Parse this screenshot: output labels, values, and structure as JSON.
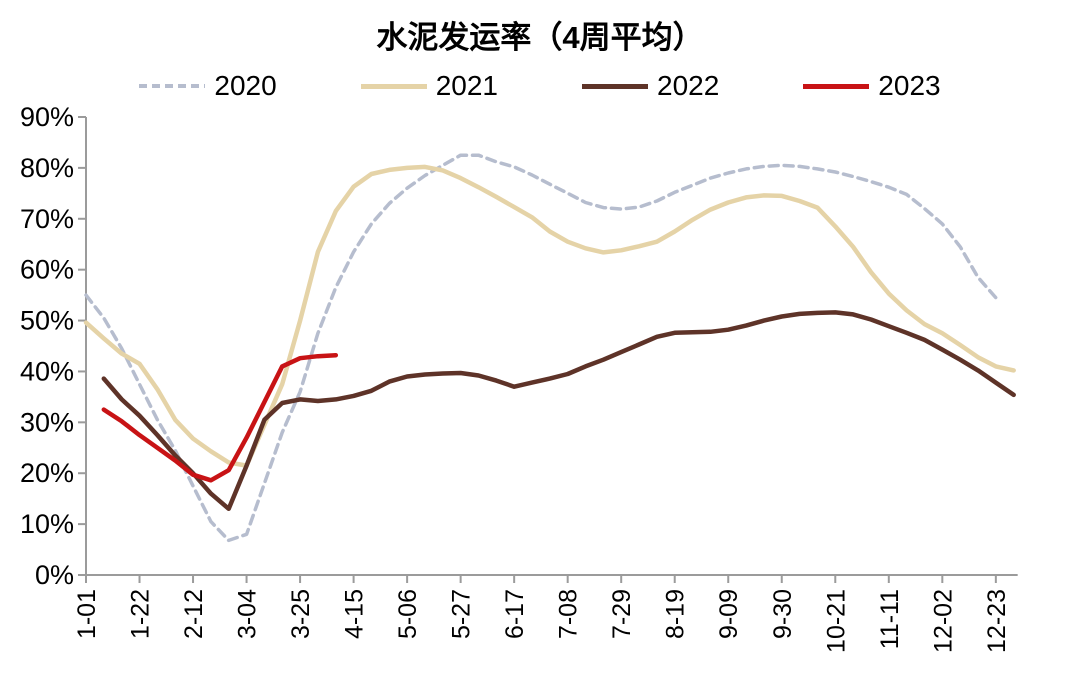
{
  "title": "水泥发运率（4周平均）",
  "chart_data": {
    "type": "line",
    "title": "水泥发运率（4周平均）",
    "grid": false,
    "legend_position": "top",
    "background": "#ffffff",
    "axis_color": "#9b9b9b",
    "label_color": "#000000",
    "y_axis": {
      "min": 0,
      "max": 90,
      "step": 10,
      "labels": [
        "0%",
        "10%",
        "20%",
        "30%",
        "40%",
        "50%",
        "60%",
        "70%",
        "80%",
        "90%"
      ]
    },
    "x_axis": {
      "unit": "week",
      "total_weeks": 53,
      "tick_every_weeks": 3,
      "tick_labels": [
        "1-01",
        "1-22",
        "2-12",
        "3-04",
        "3-25",
        "4-15",
        "5-06",
        "5-27",
        "6-17",
        "7-08",
        "7-29",
        "8-19",
        "9-09",
        "9-30",
        "10-21",
        "11-11",
        "12-02",
        "12-23"
      ]
    },
    "series": [
      {
        "name": "2020",
        "color": "#b6bdce",
        "style": "dashed",
        "start_week": 1,
        "values": [
          55,
          50.5,
          44.5,
          37.5,
          30.5,
          24.5,
          17.5,
          10.5,
          6.8,
          8,
          18,
          28,
          36,
          47.5,
          56.5,
          63.5,
          69,
          73,
          76,
          78.5,
          80.5,
          82.5,
          82.5,
          81.2,
          80.2,
          78.6,
          76.8,
          75,
          73.2,
          72.2,
          71.9,
          72.3,
          73.5,
          75.2,
          76.6,
          78,
          79,
          79.8,
          80.3,
          80.5,
          80.3,
          79.8,
          79.2,
          78.3,
          77.3,
          76.2,
          74.8,
          72,
          69,
          64.5,
          58.5,
          54.5
        ]
      },
      {
        "name": "2021",
        "color": "#e5d3a7",
        "style": "solid",
        "start_week": 1,
        "values": [
          49.6,
          46.5,
          43.5,
          41.5,
          36.5,
          30.5,
          26.8,
          24.3,
          22.1,
          21.5,
          29.5,
          37.5,
          50,
          63.5,
          71.5,
          76.3,
          78.8,
          79.6,
          80,
          80.2,
          79.5,
          78,
          76.2,
          74.3,
          72.3,
          70.3,
          67.5,
          65.5,
          64.2,
          63.4,
          63.8,
          64.6,
          65.5,
          67.5,
          69.8,
          71.8,
          73.2,
          74.2,
          74.6,
          74.5,
          73.5,
          72.2,
          68.5,
          64.5,
          59.5,
          55.3,
          52,
          49.3,
          47.5,
          45.2,
          42.8,
          41,
          40.2
        ]
      },
      {
        "name": "2022",
        "color": "#5e3328",
        "style": "solid",
        "start_week": 2,
        "values": [
          38.6,
          34.5,
          31.3,
          27.5,
          23.5,
          20,
          16,
          13,
          21.5,
          30.5,
          33.8,
          34.5,
          34.2,
          34.5,
          35.2,
          36.2,
          38,
          39,
          39.4,
          39.6,
          39.7,
          39.2,
          38.2,
          37,
          37.8,
          38.6,
          39.5,
          41,
          42.3,
          43.8,
          45.3,
          46.8,
          47.6,
          47.7,
          47.8,
          48.2,
          49,
          50,
          50.8,
          51.3,
          51.5,
          51.6,
          51.2,
          50.2,
          48.9,
          47.6,
          46.2,
          44.3,
          42.3,
          40.2,
          37.8,
          35.4
        ]
      },
      {
        "name": "2023",
        "color": "#c81315",
        "style": "solid",
        "start_week": 2,
        "values": [
          32.5,
          30.2,
          27.5,
          25,
          22.5,
          19.7,
          18.6,
          20.6,
          27,
          34,
          41,
          42.6,
          43,
          43.2
        ]
      }
    ]
  }
}
